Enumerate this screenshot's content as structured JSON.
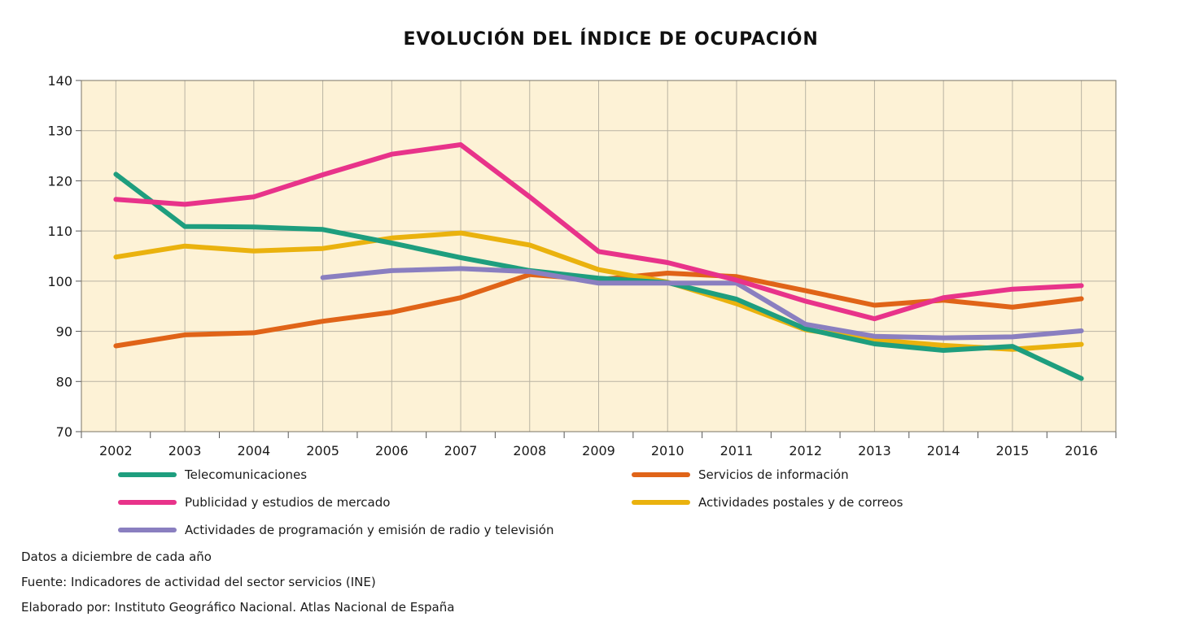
{
  "chart_data": {
    "type": "line",
    "title": "EVOLUCIÓN DEL ÍNDICE DE OCUPACIÓN",
    "xlabel": "",
    "ylabel": "",
    "x": [
      "2002",
      "2003",
      "2004",
      "2005",
      "2006",
      "2007",
      "2008",
      "2009",
      "2010",
      "2011",
      "2012",
      "2013",
      "2014",
      "2015",
      "2016"
    ],
    "ylim": [
      70,
      140
    ],
    "yticks": [
      70,
      80,
      90,
      100,
      110,
      120,
      130,
      140
    ],
    "grid": true,
    "background_color": "#fdf2d6",
    "legend_position": "bottom",
    "series": [
      {
        "name": "Telecomunicaciones",
        "color": "#1e9e7e",
        "values": [
          121.3,
          110.9,
          110.8,
          110.3,
          107.6,
          104.7,
          102.1,
          100.6,
          99.7,
          96.4,
          90.5,
          87.5,
          86.2,
          87.0,
          80.6
        ]
      },
      {
        "name": "Servicios de información",
        "color": "#e06418",
        "values": [
          87.1,
          89.3,
          89.7,
          92.0,
          93.8,
          96.7,
          101.3,
          100.3,
          101.6,
          100.9,
          98.1,
          95.2,
          96.2,
          94.8,
          96.5
        ]
      },
      {
        "name": "Publicidad y estudios de mercado",
        "color": "#e8338a",
        "values": [
          116.3,
          115.3,
          116.8,
          121.2,
          125.3,
          127.2,
          116.8,
          105.9,
          103.7,
          100.2,
          96.0,
          92.5,
          96.7,
          98.4,
          99.1
        ]
      },
      {
        "name": "Actividades postales y de correos",
        "color": "#eab20e",
        "values": [
          104.8,
          107.0,
          106.0,
          106.5,
          108.6,
          109.6,
          107.2,
          102.3,
          99.8,
          95.5,
          90.3,
          88.3,
          87.2,
          86.4,
          87.4
        ]
      },
      {
        "name": "Actividades de programación y emisión de radio y televisión",
        "color": "#8a7fc0",
        "values": [
          null,
          null,
          null,
          100.7,
          102.1,
          102.5,
          101.9,
          99.6,
          99.6,
          99.6,
          91.4,
          89.0,
          88.7,
          88.9,
          90.1
        ]
      }
    ]
  },
  "footnotes": {
    "line1": "Datos a diciembre de cada año",
    "line2": "Fuente: Indicadores de actividad del sector servicios (INE)",
    "line3": "Elaborado por: Instituto Geográfico Nacional. Atlas Nacional de España"
  }
}
